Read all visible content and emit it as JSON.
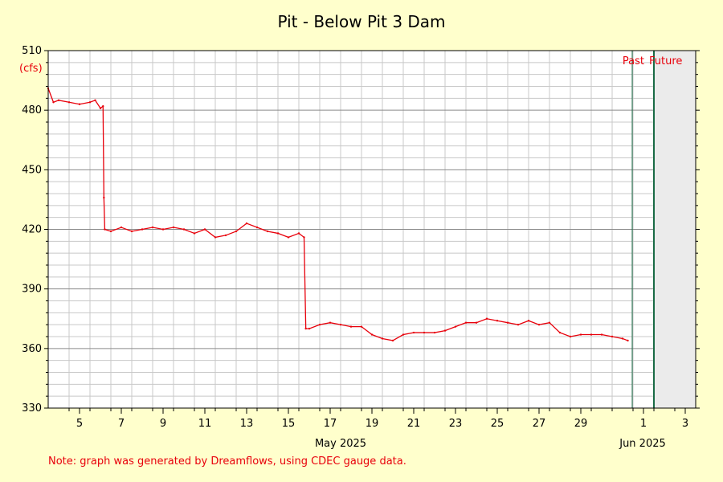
{
  "chart_data": {
    "type": "line",
    "title": "Pit - Below Pit 3 Dam",
    "y_unit": "(cfs)",
    "ylim": [
      330,
      510
    ],
    "y_ticks": [
      330,
      360,
      390,
      420,
      450,
      480,
      510
    ],
    "x_range": [
      "2025-05-04",
      "2025-06-03"
    ],
    "x_tick_labels": [
      "5",
      "7",
      "9",
      "11",
      "13",
      "15",
      "17",
      "19",
      "21",
      "23",
      "25",
      "27",
      "29",
      "1",
      "3"
    ],
    "x_month_labels": [
      "May 2025",
      "Jun 2025"
    ],
    "past_label": "Past",
    "future_label": "Future",
    "now_marker": "2025-06-01",
    "forecast_region_start": "2025-06-02",
    "grid": true,
    "line_color": "#e8000b",
    "marker_color": "#1a6b46",
    "forecast_shade": "#ebebeb",
    "series": [
      {
        "points": [
          [
            "2025-05-04",
            491
          ],
          [
            "2025-05-04 06:00",
            484
          ],
          [
            "2025-05-04 12:00",
            485
          ],
          [
            "2025-05-05",
            484
          ],
          [
            "2025-05-05 12:00",
            483
          ],
          [
            "2025-05-06",
            484
          ],
          [
            "2025-05-06 06:00",
            485
          ],
          [
            "2025-05-06 12:00",
            481
          ],
          [
            "2025-05-06 15:00",
            482
          ],
          [
            "2025-05-06 16:00",
            436
          ],
          [
            "2025-05-06 17:00",
            420
          ],
          [
            "2025-05-07",
            419
          ],
          [
            "2025-05-07 12:00",
            421
          ],
          [
            "2025-05-08",
            419
          ],
          [
            "2025-05-08 12:00",
            420
          ],
          [
            "2025-05-09",
            421
          ],
          [
            "2025-05-09 12:00",
            420
          ],
          [
            "2025-05-10",
            421
          ],
          [
            "2025-05-10 12:00",
            420
          ],
          [
            "2025-05-11",
            418
          ],
          [
            "2025-05-11 12:00",
            420
          ],
          [
            "2025-05-12",
            416
          ],
          [
            "2025-05-12 12:00",
            417
          ],
          [
            "2025-05-13",
            419
          ],
          [
            "2025-05-13 12:00",
            423
          ],
          [
            "2025-05-14",
            421
          ],
          [
            "2025-05-14 12:00",
            419
          ],
          [
            "2025-05-15",
            418
          ],
          [
            "2025-05-15 12:00",
            416
          ],
          [
            "2025-05-16",
            418
          ],
          [
            "2025-05-16 06:00",
            416
          ],
          [
            "2025-05-16 08:00",
            370
          ],
          [
            "2025-05-16 12:00",
            370
          ],
          [
            "2025-05-17",
            372
          ],
          [
            "2025-05-17 12:00",
            373
          ],
          [
            "2025-05-18",
            372
          ],
          [
            "2025-05-18 12:00",
            371
          ],
          [
            "2025-05-19",
            371
          ],
          [
            "2025-05-19 12:00",
            367
          ],
          [
            "2025-05-20",
            365
          ],
          [
            "2025-05-20 12:00",
            364
          ],
          [
            "2025-05-21",
            367
          ],
          [
            "2025-05-21 12:00",
            368
          ],
          [
            "2025-05-22",
            368
          ],
          [
            "2025-05-22 12:00",
            368
          ],
          [
            "2025-05-23",
            369
          ],
          [
            "2025-05-23 12:00",
            371
          ],
          [
            "2025-05-24",
            373
          ],
          [
            "2025-05-24 12:00",
            373
          ],
          [
            "2025-05-25",
            375
          ],
          [
            "2025-05-25 12:00",
            374
          ],
          [
            "2025-05-26",
            373
          ],
          [
            "2025-05-26 12:00",
            372
          ],
          [
            "2025-05-27",
            374
          ],
          [
            "2025-05-27 12:00",
            372
          ],
          [
            "2025-05-28",
            373
          ],
          [
            "2025-05-28 12:00",
            368
          ],
          [
            "2025-05-29",
            366
          ],
          [
            "2025-05-29 12:00",
            367
          ],
          [
            "2025-05-30",
            367
          ],
          [
            "2025-05-30 12:00",
            367
          ],
          [
            "2025-05-31",
            366
          ],
          [
            "2025-05-31 12:00",
            365
          ],
          [
            "2025-05-31 18:00",
            364
          ]
        ]
      }
    ]
  },
  "note": "Note: graph was generated by Dreamflows, using CDEC gauge data."
}
